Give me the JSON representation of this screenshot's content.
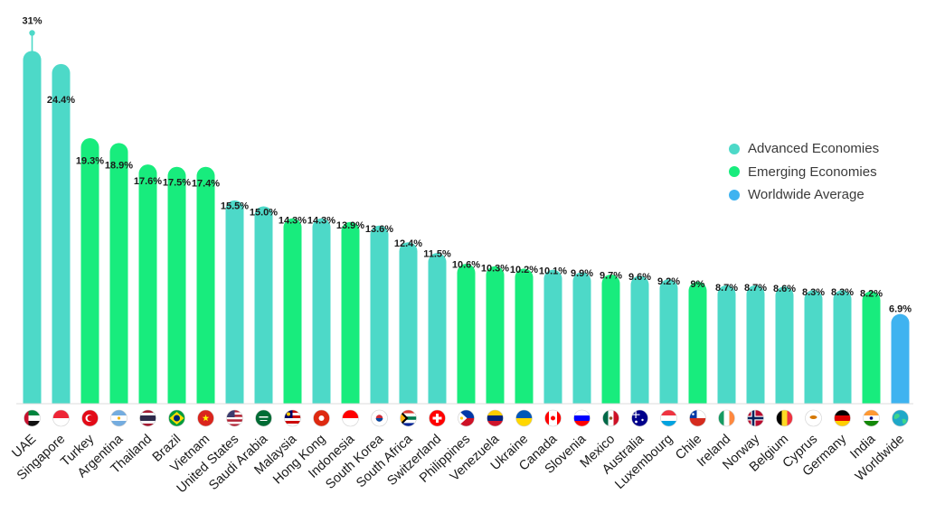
{
  "chart_data": {
    "type": "bar",
    "title": "",
    "xlabel": "",
    "ylabel": "",
    "ylim": [
      0,
      33
    ],
    "grid": false,
    "legend_position": "right",
    "categories": [
      "UAE",
      "Singapore",
      "Turkey",
      "Argentina",
      "Thailand",
      "Brazil",
      "Vietnam",
      "United States",
      "Saudi Arabia",
      "Malaysia",
      "Hong Kong",
      "Indonesia",
      "South Korea",
      "South Africa",
      "Switzerland",
      "Philippines",
      "Venezuela",
      "Ukraine",
      "Canada",
      "Slovenia",
      "Mexico",
      "Australia",
      "Luxembourg",
      "Chile",
      "Ireland",
      "Norway",
      "Belgium",
      "Cyprus",
      "Germany",
      "India",
      "Worldwide"
    ],
    "values": [
      31,
      24.4,
      19.3,
      18.9,
      17.6,
      17.5,
      17.4,
      15.5,
      15.0,
      14.3,
      14.3,
      13.9,
      13.6,
      12.4,
      11.5,
      10.6,
      10.3,
      10.2,
      10.1,
      9.9,
      9.7,
      9.6,
      9.2,
      9,
      8.7,
      8.7,
      8.6,
      8.3,
      8.3,
      8.2,
      6.9
    ],
    "value_labels": [
      "31%",
      "24.4%",
      "19.3%",
      "18.9%",
      "17.6%",
      "17.5%",
      "17.4%",
      "15.5%",
      "15.0%",
      "14.3%",
      "14.3%",
      "13.9%",
      "13.6%",
      "12.4%",
      "11.5%",
      "10.6%",
      "10.3%",
      "10.2%",
      "10.1%",
      "9.9%",
      "9.7%",
      "9.6%",
      "9.2%",
      "9%",
      "8.7%",
      "8.7%",
      "8.6%",
      "8.3%",
      "8.3%",
      "8.2%",
      "6.9%"
    ],
    "groups": [
      "advanced",
      "advanced",
      "emerging",
      "emerging",
      "emerging",
      "emerging",
      "emerging",
      "advanced",
      "advanced",
      "emerging",
      "advanced",
      "emerging",
      "advanced",
      "advanced",
      "advanced",
      "emerging",
      "emerging",
      "emerging",
      "advanced",
      "advanced",
      "emerging",
      "advanced",
      "advanced",
      "emerging",
      "advanced",
      "advanced",
      "advanced",
      "advanced",
      "advanced",
      "emerging",
      "worldwide"
    ],
    "bar_values": [
      29.5,
      28.4,
      22.2,
      21.8,
      20.0,
      19.8,
      19.8,
      17.0,
      16.5,
      15.5,
      15.5,
      15.2,
      14.9,
      13.5,
      12.6,
      11.7,
      11.5,
      11.3,
      11.2,
      11.0,
      10.8,
      10.7,
      10.4,
      10.2,
      9.9,
      9.9,
      9.8,
      9.5,
      9.5,
      9.4,
      7.5
    ],
    "legend": [
      {
        "key": "advanced",
        "label": "Advanced Economies",
        "color": "#4dd9c8"
      },
      {
        "key": "emerging",
        "label": "Emerging Economies",
        "color": "#18ec7d"
      },
      {
        "key": "worldwide",
        "label": "Worldwide Average",
        "color": "#3fb3f0"
      }
    ]
  },
  "flag_icons": [
    "uae-flag-icon",
    "singapore-flag-icon",
    "turkey-flag-icon",
    "argentina-flag-icon",
    "thailand-flag-icon",
    "brazil-flag-icon",
    "vietnam-flag-icon",
    "united-states-flag-icon",
    "saudi-arabia-flag-icon",
    "malaysia-flag-icon",
    "hong-kong-flag-icon",
    "indonesia-flag-icon",
    "south-korea-flag-icon",
    "south-africa-flag-icon",
    "switzerland-flag-icon",
    "philippines-flag-icon",
    "venezuela-flag-icon",
    "ukraine-flag-icon",
    "canada-flag-icon",
    "slovenia-flag-icon",
    "mexico-flag-icon",
    "australia-flag-icon",
    "luxembourg-flag-icon",
    "chile-flag-icon",
    "ireland-flag-icon",
    "norway-flag-icon",
    "belgium-flag-icon",
    "cyprus-flag-icon",
    "germany-flag-icon",
    "india-flag-icon",
    "globe-icon"
  ]
}
